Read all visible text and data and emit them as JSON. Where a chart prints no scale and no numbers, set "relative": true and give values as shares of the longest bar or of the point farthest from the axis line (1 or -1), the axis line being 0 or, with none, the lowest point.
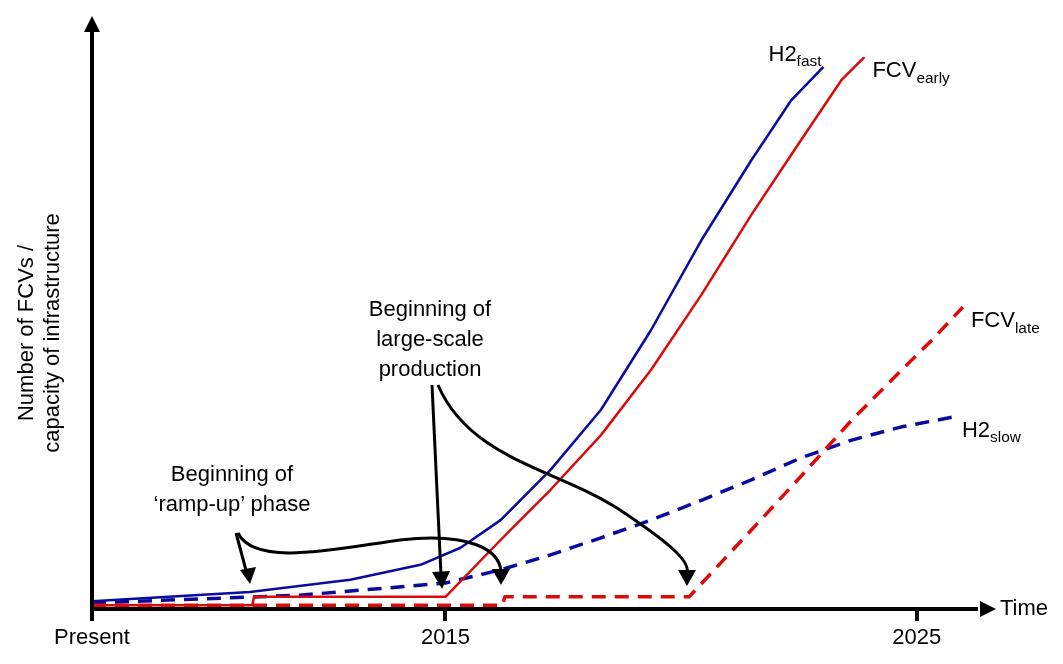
{
  "chart_data": {
    "type": "line",
    "relative": true,
    "xlabel": "Time",
    "ylabel": "Number of FCVs /\ncapacity of infrastructure",
    "xlim": [
      2007.5,
      2026.3
    ],
    "xticks": [
      {
        "value": 2007.5,
        "label": "Present"
      },
      2015,
      2025
    ],
    "grid": false,
    "legend": false,
    "marker": "none",
    "series": [
      {
        "name": "H2$_{fast}$",
        "color": "#0a0aa0",
        "line_style": "solid",
        "x": [
          2007.5,
          2010.85,
          2012.98,
          2014.47,
          2015.32,
          2016.17,
          2017.23,
          2018.3,
          2019.36,
          2020.43,
          2021.49,
          2022.34,
          2023.02
        ],
        "values": [
          0.014,
          0.031,
          0.053,
          0.08,
          0.111,
          0.161,
          0.252,
          0.361,
          0.505,
          0.668,
          0.813,
          0.922,
          0.982
        ]
      },
      {
        "name": "FCV$_{early}$",
        "color": "#dd0a0a",
        "line_style": "solid",
        "x": [
          2007.5,
          2010.9,
          2010.94,
          2015,
          2016.17,
          2017.23,
          2018.3,
          2019.36,
          2020.43,
          2021.49,
          2022.55,
          2023.4,
          2023.89
        ],
        "values": [
          0.007,
          0.007,
          0.022,
          0.022,
          0.125,
          0.216,
          0.315,
          0.433,
          0.569,
          0.714,
          0.85,
          0.958,
          1
        ]
      },
      {
        "name": "FCV$_{late}$",
        "color": "#dd0a0a",
        "line_style": "dashed",
        "x": [
          2007.5,
          2016.21,
          2016.26,
          2020.17,
          2021.49,
          2022.55,
          2023.62,
          2024.68,
          2025.32,
          2025.98
        ],
        "values": [
          0.007,
          0.007,
          0.022,
          0.022,
          0.143,
          0.241,
          0.342,
          0.433,
          0.487,
          0.547
        ]
      },
      {
        "name": "H2$_{slow}$",
        "color": "#0a0aa0",
        "line_style": "dashed",
        "x": [
          2007.5,
          2011.91,
          2015,
          2016.17,
          2017.23,
          2018.3,
          2019.36,
          2020.43,
          2021.49,
          2022.55,
          2023.62,
          2024.68,
          2025.79
        ],
        "values": [
          0.011,
          0.025,
          0.047,
          0.071,
          0.098,
          0.129,
          0.161,
          0.197,
          0.234,
          0.274,
          0.306,
          0.33,
          0.348
        ]
      }
    ],
    "annotations": [
      "Beginning of ‘ramp-up’ phase",
      "Beginning of large-scale production"
    ]
  }
}
